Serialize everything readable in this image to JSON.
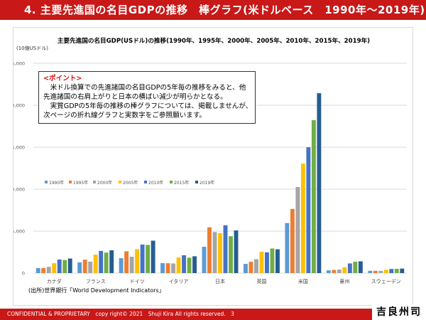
{
  "header": {
    "title": "4. 主要先進国の名目GDPの推移　棒グラフ(米ドルベース　1990年～2019年)"
  },
  "callout": {
    "heading": "<ポイント>",
    "lines": [
      "　米ドル換算での先進諸国の名目GDPの5年毎の推移をみると、他",
      "先進諸国の右肩上がりと日本の横ばい減少が明らかとなる。",
      "　実質GDPの5年毎の推移の棒グラフについては、掲載しませんが、",
      "次ページの折れ線グラフと実数字をご参照願います。"
    ]
  },
  "source": "(出所)世界銀行「World Development Indicators」",
  "footer": {
    "text": "CONFIDENTIAL & PROPRIETARY　copy right© 2021　Shuji Kira All rights reserved.　3",
    "logo": "吉良州司"
  },
  "chart_data": {
    "type": "bar",
    "title": "主要先進国の名目GDP(USドル)の推移(1990年、1995年、2000年、2005年、2010年、2015年、2019年)",
    "unit_label": "(10億USドル)",
    "ylim": [
      0,
      25000
    ],
    "yticks": [
      0,
      5000,
      10000,
      15000,
      20000,
      25000
    ],
    "ytick_labels": [
      "0",
      "5,000",
      "10,000",
      "15,000",
      "20,000",
      "25,000"
    ],
    "grid": true,
    "legend_position": "middle-left",
    "categories": [
      "カナダ",
      "フランス",
      "ドイツ",
      "イタリア",
      "日本",
      "英国",
      "米国",
      "豪州",
      "スウェーデン"
    ],
    "series": [
      {
        "name": "1990年",
        "color": "#5b9bd5",
        "values": [
          594,
          1269,
          1772,
          1181,
          3133,
          1093,
          5963,
          323,
          263
        ]
      },
      {
        "name": "1995年",
        "color": "#ed7d31",
        "values": [
          604,
          1601,
          2592,
          1174,
          5449,
          1344,
          7640,
          372,
          265
        ]
      },
      {
        "name": "2000年",
        "color": "#a5a5a5",
        "values": [
          742,
          1362,
          1948,
          1143,
          4888,
          1658,
          10252,
          415,
          262
        ]
      },
      {
        "name": "2005年",
        "color": "#ffc000",
        "values": [
          1174,
          2197,
          2846,
          1853,
          4755,
          2544,
          13037,
          695,
          389
        ]
      },
      {
        "name": "2010年",
        "color": "#4472c4",
        "values": [
          1613,
          2643,
          3397,
          2126,
          5700,
          2475,
          14992,
          1147,
          488
        ]
      },
      {
        "name": "2015年",
        "color": "#70ad47",
        "values": [
          1556,
          2439,
          3357,
          1835,
          4389,
          2929,
          18225,
          1351,
          505
        ]
      },
      {
        "name": "2019年",
        "color": "#255e91",
        "values": [
          1736,
          2716,
          3861,
          2001,
          5082,
          2830,
          21433,
          1397,
          531
        ]
      }
    ]
  }
}
